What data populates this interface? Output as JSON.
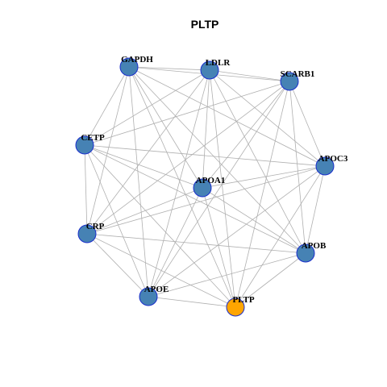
{
  "title": "PLTP",
  "nodes": [
    {
      "label": "GAPDH"
    },
    {
      "label": "LDLR"
    },
    {
      "label": "SCARB1"
    },
    {
      "label": "CETP"
    },
    {
      "label": "APOC3"
    },
    {
      "label": "APOA1"
    },
    {
      "label": "CRP"
    },
    {
      "label": "APOB"
    },
    {
      "label": "APOE"
    },
    {
      "label": "PLTP"
    }
  ]
}
